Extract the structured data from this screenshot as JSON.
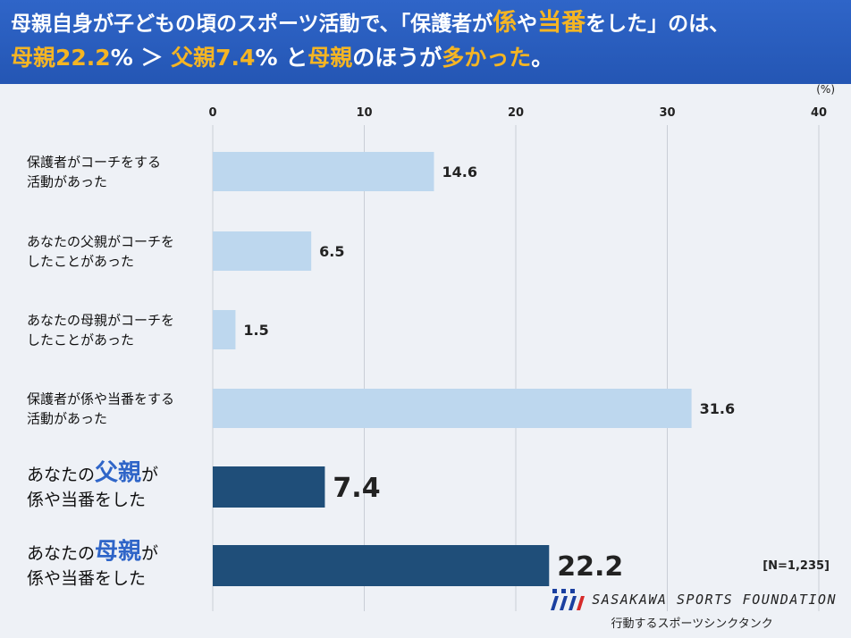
{
  "header": {
    "line1_a": "母親自身が子どもの頃のスポーツ活動で、「保護者が",
    "line1_b": "係",
    "line1_c": "や",
    "line1_d": "当番",
    "line1_e": "をした」のは、",
    "line2_a": "母親22.2",
    "line2_b": "% ＞ ",
    "line2_c": "父親7.4",
    "line2_d": "% と",
    "line2_e": "母親",
    "line2_f": "のほうが",
    "line2_g": "多かった",
    "line2_h": "。"
  },
  "colors": {
    "banner": "#2f65c8",
    "accent": "#f5b523",
    "light_bar": "#bdd7ee",
    "dark_bar": "#1f4e79"
  },
  "chart_data": {
    "type": "bar",
    "orientation": "horizontal",
    "unit": "(%)",
    "xlim": [
      0,
      40
    ],
    "ticks": [
      0,
      10,
      20,
      30,
      40
    ],
    "grid": true,
    "categories": [
      [
        "保護者がコーチをする",
        "活動があった"
      ],
      [
        "あなたの父親がコーチを",
        "したことがあった"
      ],
      [
        "あなたの母親がコーチを",
        "したことがあった"
      ],
      [
        "保護者が係や当番をする",
        "活動があった"
      ],
      [
        "あなたの父親が",
        "係や当番をした"
      ],
      [
        "あなたの母親が",
        "係や当番をした"
      ]
    ],
    "values": [
      14.6,
      6.5,
      1.5,
      31.6,
      7.4,
      22.2
    ],
    "value_labels": [
      "14.6",
      "6.5",
      "1.5",
      "31.6",
      "7.4",
      "22.2"
    ],
    "emphasis": [
      false,
      false,
      false,
      false,
      true,
      true
    ],
    "emphasis_words": [
      "",
      "",
      "",
      "",
      "父親",
      "母親"
    ],
    "sample_size": "[N=1,235]"
  },
  "footer": {
    "org": "SASAKAWA SPORTS FOUNDATION",
    "tagline": "行動するスポーツシンクタンク"
  }
}
